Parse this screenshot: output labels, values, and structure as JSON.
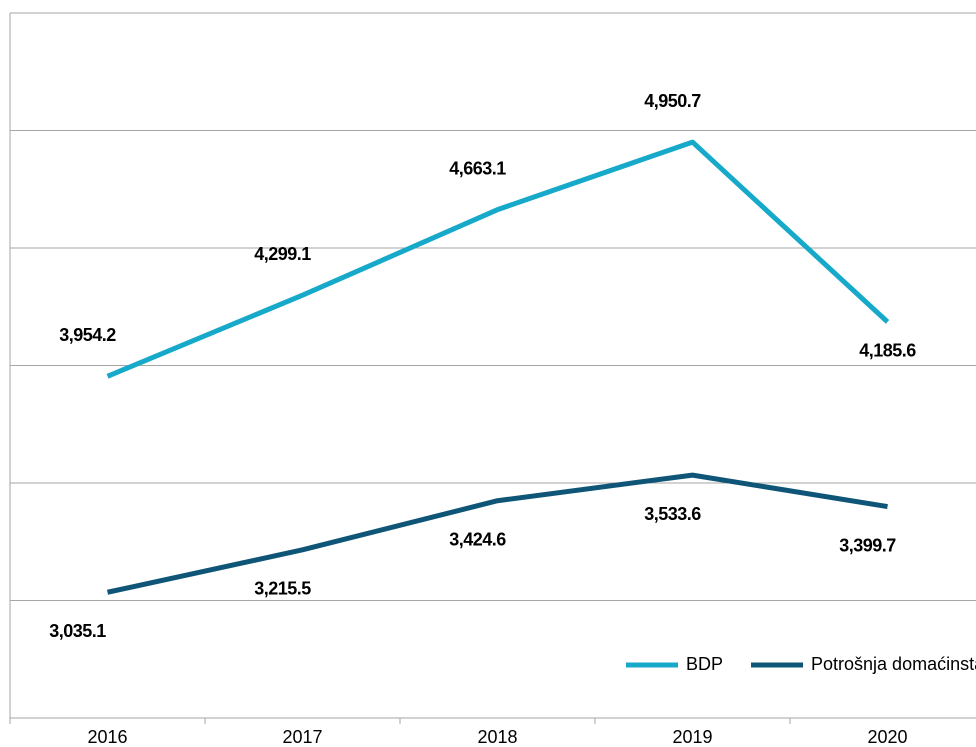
{
  "chart_data": {
    "type": "line",
    "categories": [
      "2016",
      "2017",
      "2018",
      "2019",
      "2020"
    ],
    "series": [
      {
        "name": "BDP",
        "color": "#17a9c9",
        "values": [
          3954.2,
          4299.1,
          4663.1,
          4950.7,
          4185.6
        ],
        "value_labels": [
          "3,954.2",
          "4,299.1",
          "4,663.1",
          "4,950.7",
          "4,185.6"
        ]
      },
      {
        "name": "Potrošnja domaćinstava",
        "color": "#0f5577",
        "values": [
          3035.1,
          3215.5,
          3424.6,
          3533.6,
          3399.7
        ],
        "value_labels": [
          "3,035.1",
          "3,215.5",
          "3,424.6",
          "3,533.6",
          "3,399.7"
        ]
      }
    ],
    "ylim": [
      2500,
      5500
    ],
    "yticks": [
      2500,
      3000,
      3500,
      4000,
      4500,
      5000,
      5500
    ],
    "grid": true,
    "legend": "bottom-right"
  }
}
